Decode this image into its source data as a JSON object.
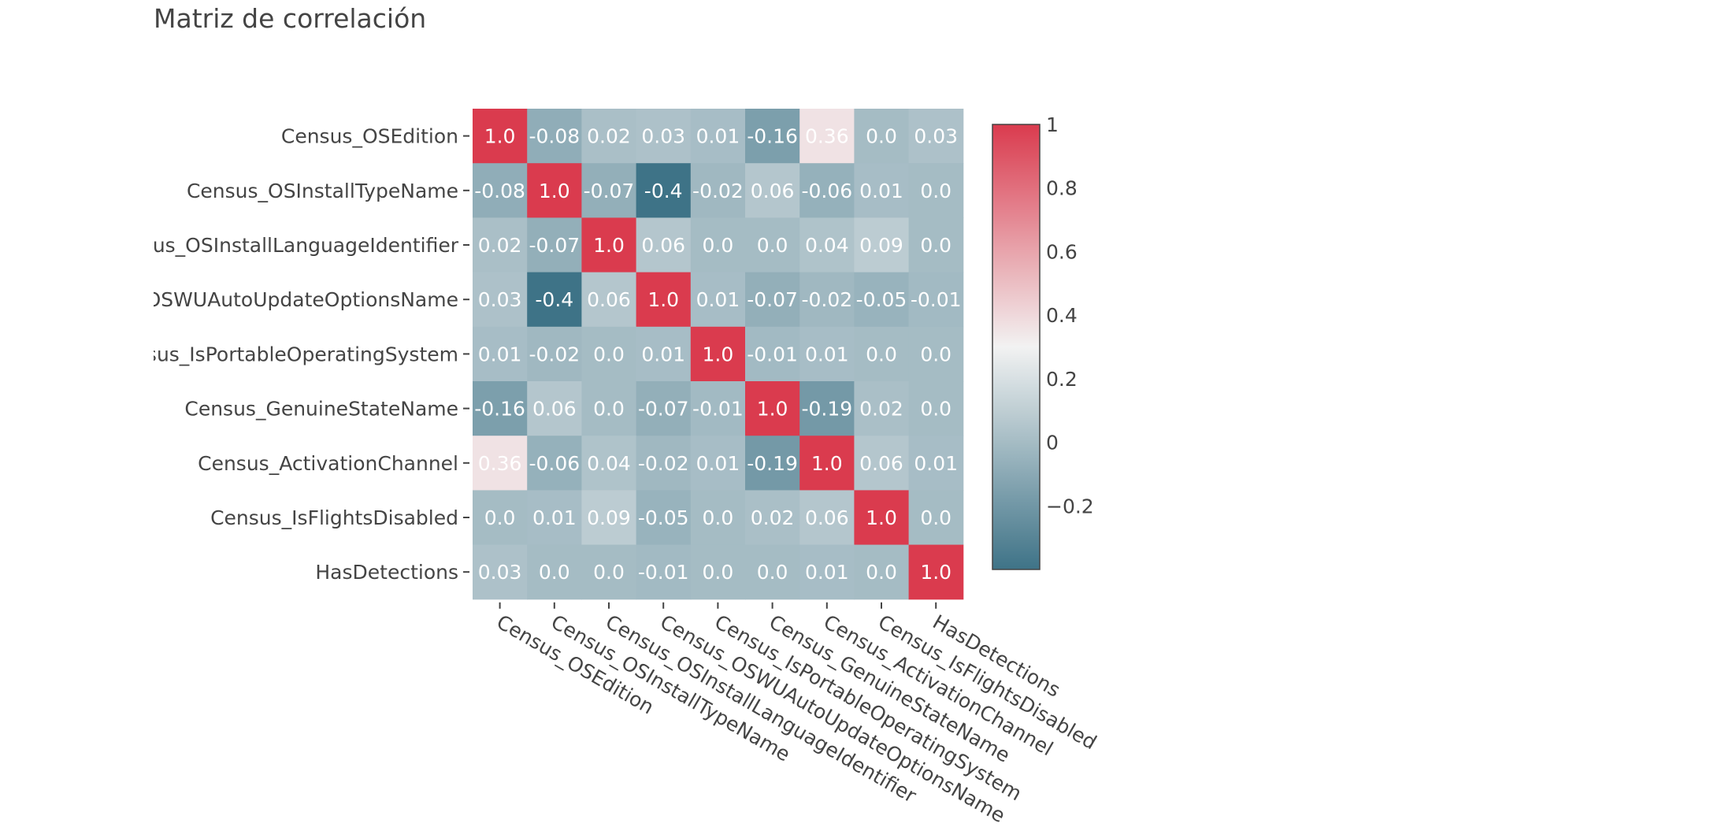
{
  "chart_data": {
    "type": "heatmap",
    "title": "Matriz de correlación",
    "variables": [
      "Census_OSEdition",
      "Census_OSInstallTypeName",
      "Census_OSInstallLanguageIdentifier",
      "Census_OSWUAutoUpdateOptionsName",
      "Census_IsPortableOperatingSystem",
      "Census_GenuineStateName",
      "Census_ActivationChannel",
      "Census_IsFlightsDisabled",
      "HasDetections"
    ],
    "z": [
      [
        1.0,
        -0.08,
        0.02,
        0.03,
        0.01,
        -0.16,
        0.36,
        -0.0,
        0.03
      ],
      [
        -0.08,
        1.0,
        -0.07,
        -0.4,
        -0.02,
        0.06,
        -0.06,
        0.01,
        -0.0
      ],
      [
        0.02,
        -0.07,
        1.0,
        0.06,
        -0.0,
        -0.0,
        0.04,
        0.09,
        0.0
      ],
      [
        0.03,
        -0.4,
        0.06,
        1.0,
        0.01,
        -0.07,
        -0.02,
        -0.05,
        -0.01
      ],
      [
        0.01,
        -0.02,
        -0.0,
        0.01,
        1.0,
        -0.01,
        0.01,
        0.0,
        0.0
      ],
      [
        -0.16,
        0.06,
        -0.0,
        -0.07,
        -0.01,
        1.0,
        -0.19,
        0.02,
        0.0
      ],
      [
        0.36,
        -0.06,
        0.04,
        -0.02,
        0.01,
        -0.19,
        1.0,
        0.06,
        0.01
      ],
      [
        -0.0,
        0.01,
        0.09,
        -0.05,
        0.0,
        0.02,
        0.06,
        1.0,
        -0.0
      ],
      [
        0.03,
        -0.0,
        0.0,
        -0.01,
        0.0,
        0.0,
        0.01,
        -0.0,
        1.0
      ]
    ],
    "colorscale": {
      "zmin": -0.4,
      "zmax": 1.0,
      "low_color": "#3e7387",
      "mid_color": "#f2f2f2",
      "high_color": "#da3b4e",
      "mid_value": 0.3,
      "ticks": [
        "1",
        "0.8",
        "0.6",
        "0.4",
        "0.2",
        "0",
        "−0.2"
      ],
      "tick_values": [
        1.0,
        0.8,
        0.6,
        0.4,
        0.2,
        0.0,
        -0.2
      ]
    },
    "legend": "right",
    "grid": false
  }
}
